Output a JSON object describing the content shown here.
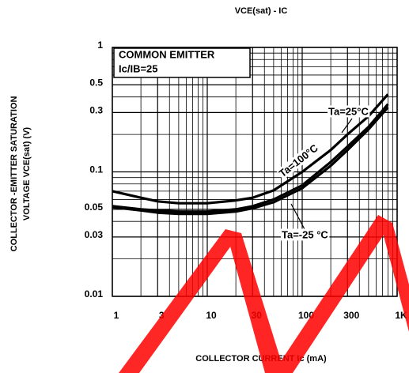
{
  "chart_data": {
    "type": "line",
    "title": "VCE(sat) - IC",
    "x_label": "COLLECTOR CURRENT Ic (mA)",
    "y_label": [
      "COLLECTOR -EMITTER SATURATION",
      "VOLTAGE VCE(sat) (V)"
    ],
    "log_x": true,
    "log_y": true,
    "grid": true,
    "xlim": [
      1,
      1000
    ],
    "ylim": [
      0.01,
      1
    ],
    "xticks": [
      1,
      3,
      10,
      30,
      100,
      300,
      {
        "value": 1000,
        "label": "1K"
      }
    ],
    "yticks": [
      0.01,
      0.03,
      0.05,
      0.1,
      0.3,
      0.5,
      1
    ],
    "x_minor_ticks": [
      2,
      4,
      5,
      6,
      7,
      8,
      9,
      20,
      40,
      50,
      60,
      70,
      80,
      90,
      200,
      400,
      500,
      600,
      700,
      800,
      900
    ],
    "y_minor_ticks": [
      0.02,
      0.04,
      0.06,
      0.07,
      0.08,
      0.09,
      0.2,
      0.4,
      0.6,
      0.7,
      0.8,
      0.9
    ],
    "annotations": [
      "COMMON EMITTER",
      "Ic/IB=25"
    ],
    "series": [
      {
        "name": "Ta=100°C",
        "color": "#000000",
        "x": [
          1,
          2,
          3,
          5,
          10,
          20,
          30,
          50,
          100,
          200,
          300,
          500,
          800
        ],
        "values": [
          0.07,
          0.062,
          0.058,
          0.056,
          0.056,
          0.059,
          0.062,
          0.071,
          0.1,
          0.15,
          0.2,
          0.28,
          0.42
        ]
      },
      {
        "name": "Ta=25°C",
        "color": "#000000",
        "x": [
          1,
          2,
          3,
          5,
          10,
          20,
          30,
          50,
          100,
          200,
          300,
          500,
          800
        ],
        "values": [
          0.053,
          0.05,
          0.049,
          0.048,
          0.048,
          0.05,
          0.053,
          0.06,
          0.078,
          0.12,
          0.16,
          0.23,
          0.35
        ]
      },
      {
        "name": "Ta=-25 °C",
        "color": "#000000",
        "x": [
          1,
          2,
          3,
          5,
          10,
          20,
          30,
          50,
          100,
          200,
          300,
          500,
          800
        ],
        "values": [
          0.052,
          0.049,
          0.047,
          0.046,
          0.046,
          0.048,
          0.051,
          0.057,
          0.074,
          0.112,
          0.15,
          0.22,
          0.33
        ]
      }
    ]
  }
}
